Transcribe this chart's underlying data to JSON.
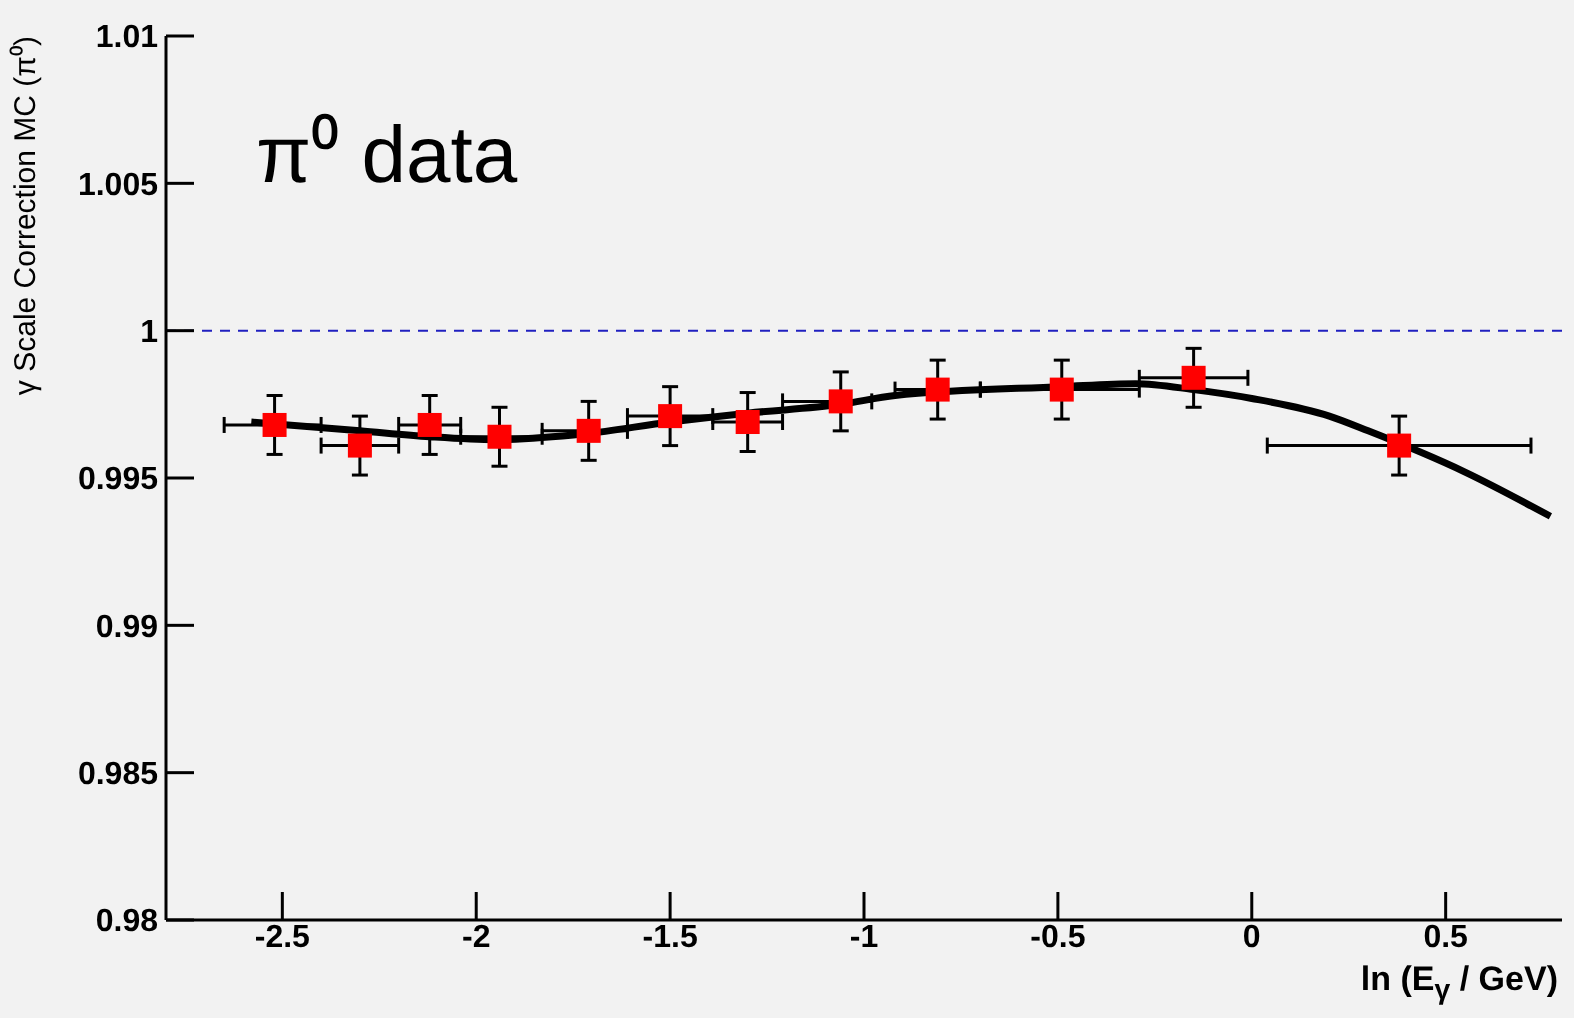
{
  "chart_data": {
    "type": "scatter",
    "annotations": [
      "π⁰ data"
    ],
    "xlabel": "ln (E$_{γ}$ / GeV)",
    "ylabel": "γ Scale Correction MC (π⁰)",
    "xlim": [
      -2.8,
      0.8
    ],
    "xticks": [
      -2.5,
      -2,
      -1.5,
      -1,
      -0.5,
      0,
      0.5
    ],
    "ylim": [
      0.98,
      1.01
    ],
    "yticks": [
      0.98,
      0.985,
      0.99,
      0.995,
      1,
      1.005,
      1.01
    ],
    "grid": false,
    "legend": false,
    "marker": "square",
    "ref_lines": [
      {
        "axis": "y",
        "value": 1,
        "color": "#2020c0",
        "line_style": "dashed"
      }
    ],
    "series": [
      {
        "color": "#ff0000",
        "x": [
          -2.52,
          -2.3,
          -2.12,
          -1.94,
          -1.71,
          -1.5,
          -1.3,
          -1.06,
          -0.81,
          -0.49,
          -0.15,
          0.38
        ],
        "values": [
          0.9968,
          0.9961,
          0.9968,
          0.9964,
          0.9966,
          0.9971,
          0.9969,
          0.9976,
          0.998,
          0.998,
          0.9984,
          0.9961
        ],
        "errors": [
          0.001,
          0.001,
          0.001,
          0.001,
          0.001,
          0.001,
          0.001,
          0.001,
          0.001,
          0.001,
          0.001,
          0.001
        ],
        "xerrors": [
          [
            -2.65,
            -2.4
          ],
          [
            -2.4,
            -2.2
          ],
          [
            -2.2,
            -2.04
          ],
          [
            -2.04,
            -1.83
          ],
          [
            -1.83,
            -1.61
          ],
          [
            -1.61,
            -1.39
          ],
          [
            -1.39,
            -1.21
          ],
          [
            -1.21,
            -0.98
          ],
          [
            -0.92,
            -0.7
          ],
          [
            -0.7,
            -0.29
          ],
          [
            -0.29,
            -0.01
          ],
          [
            0.04,
            0.72
          ]
        ]
      },
      {
        "type": "line",
        "color": "#000000",
        "marker": "none",
        "line_style": "solid",
        "x": [
          -2.58,
          -2.3,
          -2.12,
          -1.95,
          -1.72,
          -1.5,
          -1.3,
          -1.06,
          -0.92,
          -0.49,
          -0.3,
          -0.15,
          0,
          0.2,
          0.3,
          0.55,
          0.77
        ],
        "values": [
          0.9969,
          0.9966,
          0.9964,
          0.9963,
          0.9965,
          0.9969,
          0.9972,
          0.9975,
          0.9978,
          0.9981,
          0.9982,
          0.998,
          0.9977,
          0.9971,
          0.9966,
          0.9952,
          0.9937
        ]
      }
    ]
  }
}
